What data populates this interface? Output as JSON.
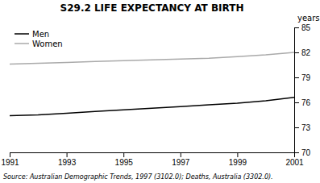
{
  "chart_data": {
    "type": "line",
    "title": "S29.2   LIFE EXPECTANCY AT BIRTH",
    "ylabel": "years",
    "x": [
      1991,
      1992,
      1993,
      1994,
      1995,
      1996,
      1997,
      1998,
      1999,
      2000,
      2001
    ],
    "series": [
      {
        "name": "Men",
        "color": "#000000",
        "values": [
          74.4,
          74.5,
          74.7,
          74.9,
          75.1,
          75.3,
          75.5,
          75.7,
          75.9,
          76.2,
          76.6
        ]
      },
      {
        "name": "Women",
        "color": "#aaaaaa",
        "values": [
          80.6,
          80.7,
          80.8,
          80.9,
          81.0,
          81.1,
          81.2,
          81.3,
          81.5,
          81.7,
          82.0
        ]
      }
    ],
    "xlim": [
      1991,
      2001
    ],
    "ylim": [
      70,
      85
    ],
    "xticks": [
      1991,
      1993,
      1995,
      1997,
      1999,
      2001
    ],
    "yticks": [
      70,
      73,
      76,
      79,
      82,
      85
    ],
    "grid": false,
    "legend": "upper left",
    "annotations": [
      "Source: Australian Demographic Trends, 1997 (3102.0); Deaths, Australia (3302.0)."
    ]
  }
}
